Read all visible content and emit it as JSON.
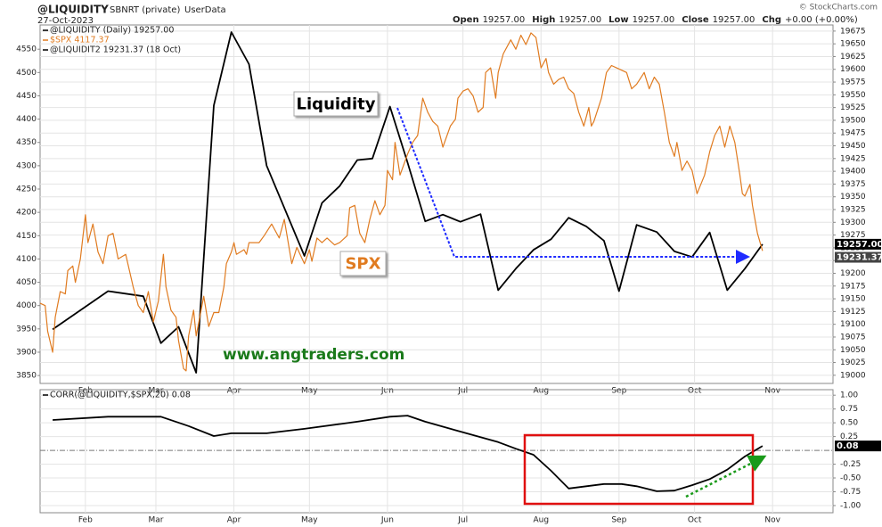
{
  "header": {
    "symbol": "@LIQUIDITY",
    "source": "SBNRT (private)",
    "feed": "UserData",
    "date": "27-Oct-2023",
    "copyright": "© StockCharts.com",
    "quote": [
      {
        "label": "Open",
        "value": "19257.00"
      },
      {
        "label": "High",
        "value": "19257.00"
      },
      {
        "label": "Low",
        "value": "19257.00"
      },
      {
        "label": "Close",
        "value": "19257.00"
      },
      {
        "label": "Chg",
        "value": "+0.00 (+0.00%)"
      }
    ]
  },
  "chart_data": [
    {
      "type": "line",
      "xlim": [
        13,
        328
      ],
      "xticks": [
        {
          "value": 31,
          "label": "Feb"
        },
        {
          "value": 59,
          "label": "Mar"
        },
        {
          "value": 90,
          "label": "Apr"
        },
        {
          "value": 120,
          "label": "May"
        },
        {
          "value": 151,
          "label": "Jun"
        },
        {
          "value": 181,
          "label": "Jul"
        },
        {
          "value": 212,
          "label": "Aug"
        },
        {
          "value": 243,
          "label": "Sep"
        },
        {
          "value": 273,
          "label": "Oct"
        },
        {
          "value": 304,
          "label": "Nov"
        }
      ],
      "ylim": [
        3833,
        4602
      ],
      "yticks": [
        3850,
        3900,
        3950,
        4000,
        4050,
        4100,
        4150,
        4200,
        4250,
        4300,
        4350,
        4400,
        4450,
        4500,
        4550
      ],
      "y2lim": [
        18984,
        19687
      ],
      "y2ticks": [
        19000,
        19025,
        19050,
        19075,
        19100,
        19125,
        19150,
        19175,
        19200,
        19225,
        19250,
        19275,
        19300,
        19325,
        19350,
        19375,
        19400,
        19425,
        19450,
        19475,
        19500,
        19525,
        19550,
        19575,
        19600,
        19625,
        19650,
        19675
      ],
      "grid": true,
      "series": [
        {
          "name": "@LIQUIDITY (Daily) 19257.00",
          "color": "#000000",
          "axis": "y2",
          "end_label": "19257.00",
          "x": [
            18,
            40,
            54,
            61,
            68,
            75,
            82,
            89,
            96,
            103,
            118,
            125,
            132,
            139,
            145,
            152,
            159,
            166,
            173,
            180,
            188,
            195,
            202,
            209,
            216,
            223,
            230,
            237,
            243,
            250,
            258,
            265,
            272,
            279,
            286,
            293,
            300
          ],
          "values": [
            19090,
            19165,
            19155,
            19063,
            19095,
            19005,
            19529,
            19673,
            19610,
            19411,
            19234,
            19338,
            19371,
            19422,
            19425,
            19527,
            19417,
            19302,
            19315,
            19301,
            19316,
            19167,
            19209,
            19246,
            19267,
            19309,
            19292,
            19264,
            19165,
            19295,
            19281,
            19243,
            19232,
            19280,
            19167,
            19209,
            19257
          ]
        },
        {
          "name": "$SPX 4117.37",
          "color": "#e07b20",
          "axis": "y",
          "x": [
            13,
            15,
            16,
            18,
            19,
            21,
            23,
            24,
            26,
            27,
            29,
            31,
            32,
            34,
            36,
            38,
            40,
            42,
            44,
            47,
            50,
            52,
            54,
            56,
            58,
            60,
            62,
            63,
            65,
            67,
            68,
            70,
            71,
            72,
            74,
            75,
            78,
            80,
            82,
            84,
            86,
            87,
            89,
            90,
            91,
            94,
            95,
            96,
            100,
            102,
            105,
            108,
            110,
            113,
            115,
            118,
            120,
            121,
            123,
            125,
            127,
            130,
            132,
            135,
            136,
            138,
            140,
            142,
            144,
            146,
            148,
            150,
            151,
            153,
            154,
            156,
            159,
            161,
            163,
            165,
            167,
            169,
            171,
            173,
            176,
            178,
            179,
            181,
            183,
            185,
            187,
            189,
            190,
            192,
            194,
            195,
            197,
            200,
            202,
            204,
            206,
            208,
            210,
            212,
            214,
            215,
            217,
            219,
            221,
            223,
            225,
            227,
            229,
            231,
            232,
            233,
            236,
            238,
            240,
            242,
            244,
            246,
            248,
            250,
            253,
            255,
            257,
            259,
            261,
            263,
            265,
            266,
            268,
            270,
            272,
            274,
            277,
            279,
            281,
            283,
            285,
            287,
            289,
            291,
            292,
            293,
            295,
            296,
            298,
            300
          ],
          "values": [
            4005,
            4000,
            3945,
            3900,
            3975,
            4030,
            4025,
            4075,
            4085,
            4050,
            4100,
            4195,
            4135,
            4175,
            4115,
            4090,
            4150,
            4155,
            4100,
            4110,
            4040,
            4000,
            3985,
            4030,
            3965,
            4010,
            4110,
            4040,
            3990,
            3975,
            3925,
            3865,
            3860,
            3935,
            3990,
            3935,
            4020,
            3955,
            3985,
            3985,
            4040,
            4090,
            4115,
            4135,
            4110,
            4120,
            4110,
            4135,
            4135,
            4150,
            4175,
            4145,
            4185,
            4090,
            4125,
            4090,
            4120,
            4095,
            4145,
            4135,
            4145,
            4130,
            4135,
            4150,
            4210,
            4215,
            4155,
            4135,
            4185,
            4225,
            4195,
            4215,
            4290,
            4270,
            4350,
            4280,
            4325,
            4350,
            4365,
            4445,
            4415,
            4395,
            4385,
            4340,
            4385,
            4400,
            4445,
            4460,
            4465,
            4450,
            4415,
            4425,
            4500,
            4510,
            4445,
            4500,
            4540,
            4570,
            4550,
            4580,
            4560,
            4585,
            4575,
            4510,
            4530,
            4500,
            4475,
            4485,
            4490,
            4465,
            4455,
            4415,
            4385,
            4425,
            4385,
            4395,
            4445,
            4500,
            4515,
            4510,
            4505,
            4500,
            4465,
            4475,
            4500,
            4465,
            4490,
            4475,
            4415,
            4350,
            4320,
            4350,
            4290,
            4310,
            4290,
            4240,
            4280,
            4330,
            4365,
            4385,
            4340,
            4385,
            4350,
            4280,
            4240,
            4235,
            4260,
            4215,
            4155,
            4117.37
          ]
        }
      ],
      "legend_extra": {
        "name": "@LIQUIDIT2 19231.37 (18 Oct)",
        "color": "#000000",
        "value": 19231.37,
        "end_label": "19231.37"
      },
      "annotations": [
        "Liquidity",
        "SPX",
        "www.angtraders.com"
      ]
    },
    {
      "type": "line",
      "yaxis_position": "right",
      "xlim": [
        13,
        328
      ],
      "xticks": [
        {
          "value": 31,
          "label": "Feb"
        },
        {
          "value": 59,
          "label": "Mar"
        },
        {
          "value": 90,
          "label": "Apr"
        },
        {
          "value": 120,
          "label": "May"
        },
        {
          "value": 151,
          "label": "Jun"
        },
        {
          "value": 181,
          "label": "Jul"
        },
        {
          "value": 212,
          "label": "Aug"
        },
        {
          "value": 243,
          "label": "Sep"
        },
        {
          "value": 273,
          "label": "Oct"
        },
        {
          "value": 304,
          "label": "Nov"
        }
      ],
      "ylim": [
        -1.13,
        1.1
      ],
      "yticks": [
        {
          "value": 1,
          "label": "1.00"
        },
        {
          "value": 0.75,
          "label": "0.75"
        },
        {
          "value": 0.5,
          "label": "0.50"
        },
        {
          "value": 0.25,
          "label": "0.25"
        },
        {
          "value": -0.25,
          "label": "-0.25"
        },
        {
          "value": -0.5,
          "label": "-0.50"
        },
        {
          "value": -0.75,
          "label": "-0.75"
        },
        {
          "value": -1,
          "label": "-1.00"
        }
      ],
      "grid": true,
      "reference_line": 0,
      "series": [
        {
          "name": "CORR(@LIQUIDITY,$SPX,20) 0.08",
          "color": "#000000",
          "axis": "y",
          "end_label": "0.08",
          "x": [
            18,
            40,
            61,
            72,
            82,
            89,
            103,
            118,
            139,
            152,
            159,
            166,
            180,
            195,
            202,
            209,
            216,
            223,
            230,
            237,
            244,
            250,
            258,
            265,
            272,
            279,
            286,
            293,
            300
          ],
          "values": [
            0.55,
            0.61,
            0.61,
            0.44,
            0.26,
            0.31,
            0.31,
            0.39,
            0.52,
            0.61,
            0.63,
            0.52,
            0.34,
            0.15,
            0.03,
            -0.08,
            -0.37,
            -0.69,
            -0.65,
            -0.61,
            -0.61,
            -0.65,
            -0.74,
            -0.73,
            -0.63,
            -0.52,
            -0.35,
            -0.11,
            0.08
          ]
        }
      ]
    }
  ]
}
